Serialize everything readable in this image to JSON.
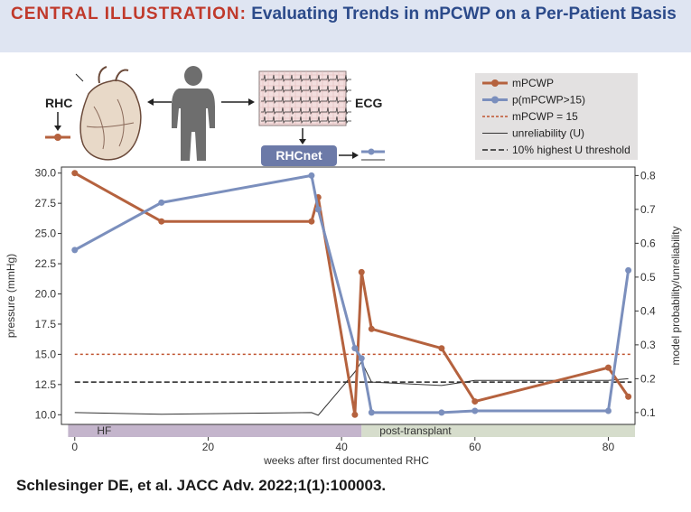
{
  "header": {
    "lead": "CENTRAL ILLUSTRATION:",
    "title": "Evaluating Trends in mPCWP on a Per-Patient Basis"
  },
  "schematic": {
    "rhc_label": "RHC",
    "ecg_label": "ECG",
    "model_label": "RHCnet"
  },
  "legend": {
    "items": [
      {
        "label": "mPCWP",
        "color": "#b5623e",
        "style": "line-marker"
      },
      {
        "label": "p(mPCWP>15)",
        "color": "#7b8fbd",
        "style": "line-marker"
      },
      {
        "label": "mPCWP = 15",
        "color": "#c0532f",
        "style": "dotted"
      },
      {
        "label": "unreliability (U)",
        "color": "#333333",
        "style": "thin"
      },
      {
        "label": "10% highest U threshold",
        "color": "#222222",
        "style": "dashed"
      }
    ]
  },
  "phases": [
    {
      "label": "HF",
      "x_start": -1,
      "x_end": 43,
      "color": "#c4b5cc"
    },
    {
      "label": "post-transplant",
      "x_start": 43,
      "x_end": 84,
      "color": "#d6ddcc"
    }
  ],
  "footer": "Schlesinger DE, et al. JACC Adv. 2022;1(1):100003.",
  "chart_data": {
    "type": "line",
    "xlabel": "weeks after first documented RHC",
    "ylabel": "pressure (mmHg)",
    "y2label": "model probability/unreliability",
    "xlim": [
      -2,
      84
    ],
    "ylim": [
      9.2,
      30.5
    ],
    "y2lim": [
      0.065,
      0.825
    ],
    "xticks": [
      0,
      20,
      40,
      60,
      80
    ],
    "yticks": [
      10.0,
      12.5,
      15.0,
      17.5,
      20.0,
      22.5,
      25.0,
      27.5,
      30.0
    ],
    "y2ticks": [
      0.1,
      0.2,
      0.3,
      0.4,
      0.5,
      0.6,
      0.7,
      0.8
    ],
    "series": [
      {
        "name": "mPCWP",
        "axis": "left",
        "color": "#b5623e",
        "x": [
          0,
          13,
          35.5,
          36.5,
          42,
          43,
          44.5,
          55,
          60,
          80,
          83
        ],
        "y": [
          30,
          26,
          26,
          28,
          10,
          21.8,
          17.1,
          15.5,
          11.1,
          13.9,
          11.5
        ]
      },
      {
        "name": "p(mPCWP>15)",
        "axis": "right",
        "color": "#7b8fbd",
        "x": [
          0,
          13,
          35.5,
          36.5,
          42,
          43,
          44.5,
          55,
          60,
          80,
          83
        ],
        "y": [
          0.58,
          0.72,
          0.8,
          0.7,
          0.29,
          0.26,
          0.1,
          0.1,
          0.105,
          0.105,
          0.52
        ]
      },
      {
        "name": "unreliability (U)",
        "axis": "right",
        "color": "#333333",
        "x": [
          0,
          13,
          35.5,
          36.5,
          42,
          43,
          44.5,
          55,
          60,
          80,
          83
        ],
        "y": [
          0.1,
          0.095,
          0.1,
          0.092,
          0.22,
          0.25,
          0.19,
          0.18,
          0.195,
          0.195,
          0.2
        ]
      }
    ],
    "reference_lines": [
      {
        "name": "mPCWP = 15",
        "axis": "left",
        "y": 15,
        "color": "#c0532f",
        "style": "dotted"
      },
      {
        "name": "10% highest U threshold",
        "axis": "right",
        "y": 0.19,
        "color": "#222222",
        "style": "dashed"
      }
    ]
  }
}
